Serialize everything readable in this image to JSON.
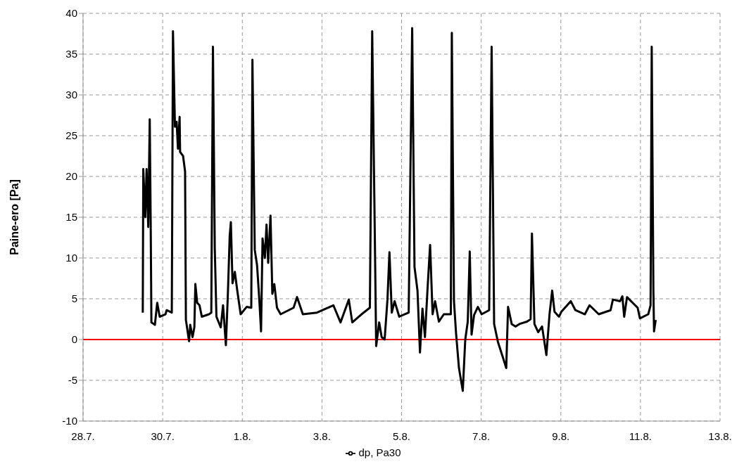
{
  "chart_data": {
    "type": "line",
    "ylabel": "Paine-ero [Pa]",
    "xlim": [
      "--07-28",
      "--08-13"
    ],
    "xticks": [
      {
        "value": "--07-28",
        "label": "28.7."
      },
      {
        "value": "--07-30",
        "label": "30.7."
      },
      {
        "value": "--08-01",
        "label": "1.8."
      },
      {
        "value": "--08-03",
        "label": "3.8."
      },
      {
        "value": "--08-05",
        "label": "5.8."
      },
      {
        "value": "--08-07",
        "label": "7.8."
      },
      {
        "value": "--08-09",
        "label": "9.8."
      },
      {
        "value": "--08-11",
        "label": "11.8."
      },
      {
        "value": "--08-13",
        "label": "13.8."
      }
    ],
    "ylim": [
      -10,
      40
    ],
    "yticks": [
      -10,
      -5,
      0,
      5,
      10,
      15,
      20,
      25,
      30,
      35,
      40
    ],
    "grid": true,
    "legend": "bottom",
    "marker": "none",
    "line_style": "solid",
    "ref_lines": [
      {
        "axis": "y",
        "value": 0,
        "color": "#ff0000"
      }
    ],
    "x": [
      "--07-29T12:00",
      "--07-29T12:18",
      "--07-29T13:30",
      "--07-29T14:18",
      "--07-29T15:18",
      "--07-29T16:12",
      "--07-29T16:48",
      "--07-29T17:12",
      "--07-29T19:18",
      "--07-29T20:42",
      "--07-29T22:12",
      "--07-30T01:42",
      "--07-30T02:24",
      "--07-30T05:30",
      "--07-30T06:12",
      "--07-30T07:24",
      "--07-30T08:24",
      "--07-30T09:12",
      "--07-30T10:12",
      "--07-30T10:30",
      "--07-30T12:18",
      "--07-30T13:30",
      "--07-30T14:00",
      "--07-30T15:54",
      "--07-30T16:36",
      "--07-30T18:00",
      "--07-30T19:06",
      "--07-30T19:42",
      "--07-30T20:48",
      "--07-30T22:12",
      "--07-30T23:36",
      "--07-31T03:54",
      "--07-31T05:18",
      "--07-31T06:18",
      "--07-31T07:24",
      "--07-31T08:24",
      "--07-31T11:00",
      "--07-31T12:24",
      "--07-31T14:06",
      "--07-31T15:18",
      "--07-31T16:24",
      "--07-31T17:06",
      "--07-31T18:06",
      "--07-31T19:30",
      "--07-31T20:54",
      "--07-31T23:00",
      "--08-01T02:36",
      "--08-01T05:24",
      "--08-01T06:06",
      "--08-01T07:30",
      "--08-01T08:54",
      "--08-01T10:18",
      "--08-01T11:18",
      "--08-01T12:12",
      "--08-01T13:36",
      "--08-01T14:36",
      "--08-01T15:36",
      "--08-01T17:00",
      "--08-01T18:06",
      "--08-01T19:18",
      "--08-01T20:54",
      "--08-01T23:06",
      "--08-02T06:54",
      "--08-02T09:00",
      "--08-02T12:30",
      "--08-02T21:00",
      "--08-03T06:54",
      "--08-03T11:12",
      "--08-03T16:12",
      "--08-03T18:18",
      "--08-03T23:54",
      "--08-04T04:54",
      "--08-04T06:18",
      "--08-04T07:42",
      "--08-04T08:42",
      "--08-04T10:30",
      "--08-04T12:00",
      "--08-04T13:48",
      "--08-04T15:30",
      "--08-04T16:42",
      "--08-04T18:06",
      "--08-04T19:48",
      "--08-04T22:36",
      "--08-05T04:18",
      "--08-05T06:24",
      "--08-05T07:48",
      "--08-05T09:36",
      "--08-05T11:06",
      "--08-05T12:36",
      "--08-05T14:06",
      "--08-05T15:36",
      "--08-05T17:12",
      "--08-05T18:42",
      "--08-05T20:12",
      "--08-05T22:30",
      "--08-06T01:30",
      "--08-06T05:42",
      "--08-06T06:18",
      "--08-06T07:36",
      "--08-06T08:48",
      "--08-06T10:36",
      "--08-06T12:54",
      "--08-06T14:24",
      "--08-06T15:54",
      "--08-06T17:06",
      "--08-06T18:12",
      "--08-06T19:42",
      "--08-06T22:00",
      "--08-07T00:18",
      "--08-07T04:48",
      "--08-07T06:18",
      "--08-07T07:48",
      "--08-07T10:06",
      "--08-07T13:06",
      "--08-07T15:06",
      "--08-07T16:12",
      "--08-07T18:24",
      "--08-07T20:42",
      "--08-07T23:00",
      "--08-08T03:36",
      "--08-08T05:48",
      "--08-08T06:36",
      "--08-08T08:06",
      "--08-08T10:24",
      "--08-08T12:42",
      "--08-08T15:18",
      "--08-08T17:12",
      "--08-08T18:48",
      "--08-08T20:12",
      "--08-08T22:54",
      "--08-09T00:18",
      "--08-09T06:00",
      "--08-09T08:48",
      "--08-09T14:30",
      "--08-09T17:18",
      "--08-09T22:54",
      "--08-10T06:00",
      "--08-10T07:24",
      "--08-10T11:42",
      "--08-10T13:06",
      "--08-10T14:12",
      "--08-10T15:54",
      "--08-10T22:18",
      "--08-10T23:42",
      "--08-11T04:42",
      "--08-11T06:06",
      "--08-11T06:48",
      "--08-11T07:48",
      "--08-11T08:12",
      "--08-11T09:12"
    ],
    "series": [
      {
        "name": "dp, Pa30",
        "color": "#000000",
        "values": [
          3.3,
          20.9,
          15.0,
          20.9,
          13.8,
          27.0,
          13.6,
          2.1,
          1.8,
          4.5,
          2.8,
          3.1,
          3.6,
          3.3,
          37.8,
          26.1,
          26.7,
          23.4,
          27.3,
          23.0,
          22.5,
          20.6,
          2.4,
          -0.2,
          1.8,
          0.3,
          1.5,
          6.8,
          4.5,
          4.2,
          2.8,
          3.1,
          3.3,
          35.9,
          11.2,
          2.8,
          1.5,
          4.2,
          -0.7,
          5.6,
          12.7,
          14.4,
          6.9,
          8.3,
          6.1,
          3.1,
          4.0,
          3.9,
          34.3,
          11.0,
          9.1,
          4.7,
          1.0,
          12.4,
          10.0,
          14.1,
          9.4,
          15.2,
          5.6,
          6.8,
          3.9,
          3.1,
          3.9,
          5.2,
          3.1,
          3.3,
          4.2,
          2.1,
          4.9,
          2.1,
          3.1,
          3.9,
          37.8,
          15.6,
          -0.8,
          2.1,
          0.3,
          0.0,
          4.9,
          10.7,
          3.3,
          4.7,
          2.8,
          3.3,
          38.2,
          8.9,
          6.0,
          -1.6,
          3.8,
          0.3,
          6.0,
          11.6,
          3.1,
          4.7,
          2.2,
          3.1,
          3.1,
          37.6,
          4.7,
          0.9,
          -3.5,
          -6.3,
          0.0,
          2.2,
          10.8,
          0.6,
          3.0,
          4.0,
          3.1,
          3.6,
          35.9,
          1.9,
          -0.3,
          -2.2,
          -3.5,
          4.0,
          1.9,
          1.6,
          1.9,
          2.2,
          2.5,
          13.0,
          1.9,
          0.9,
          1.6,
          -1.9,
          3.1,
          6.0,
          3.4,
          2.8,
          3.4,
          4.7,
          3.6,
          3.1,
          4.2,
          3.1,
          3.6,
          4.9,
          4.7,
          5.3,
          2.8,
          5.2,
          3.9,
          2.6,
          3.1,
          4.2,
          35.9,
          6.1,
          1.0,
          2.4
        ]
      }
    ]
  }
}
